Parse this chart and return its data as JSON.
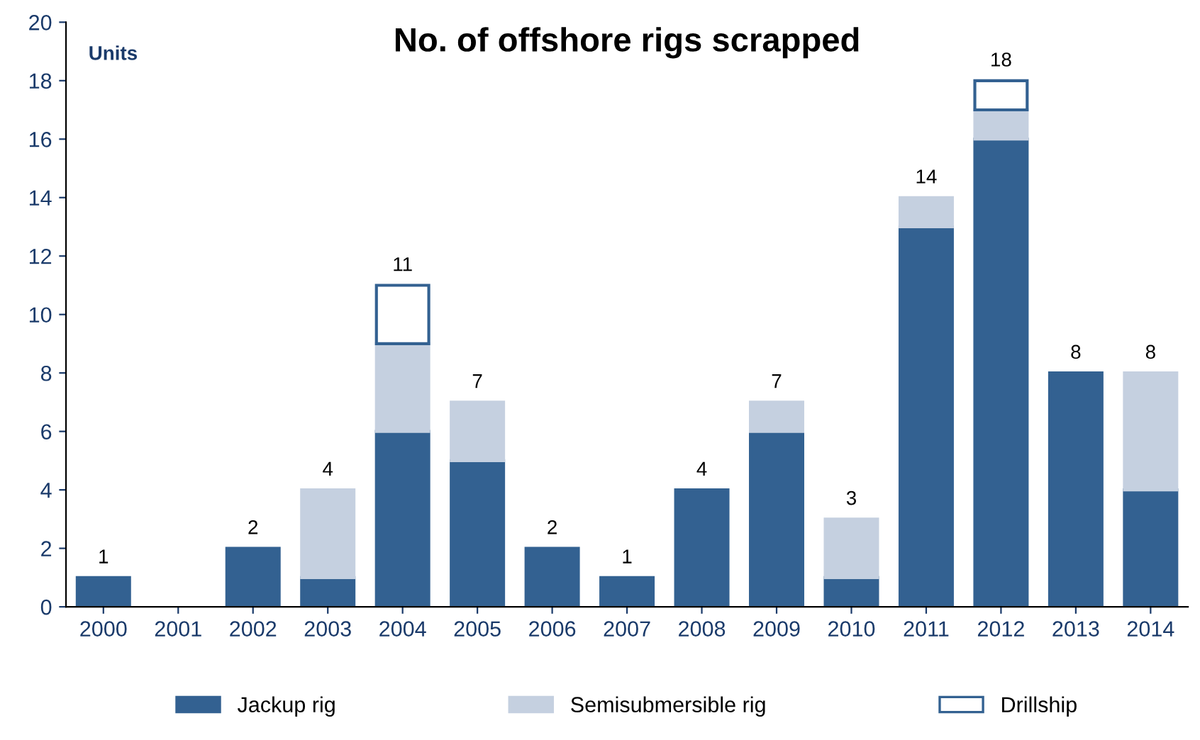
{
  "chart_data": {
    "type": "bar",
    "title": "No. of offshore rigs scrapped",
    "annotations": [
      "Units"
    ],
    "categories": [
      "2000",
      "2001",
      "2002",
      "2003",
      "2004",
      "2005",
      "2006",
      "2007",
      "2008",
      "2009",
      "2010",
      "2011",
      "2012",
      "2013",
      "2014"
    ],
    "stacked": true,
    "series": [
      {
        "name": "Jackup rig",
        "color": "#336191",
        "values": [
          1,
          null,
          2,
          1,
          6,
          5,
          2,
          1,
          4,
          6,
          1,
          13,
          16,
          8,
          4
        ]
      },
      {
        "name": "Semisubmersible rig",
        "color": "#c5d0e0",
        "values": [
          null,
          null,
          null,
          3,
          3,
          2,
          null,
          null,
          null,
          1,
          2,
          1,
          1,
          null,
          4
        ]
      },
      {
        "name": "Drillship",
        "color": "#ffffff",
        "values": [
          null,
          null,
          null,
          null,
          2,
          null,
          null,
          null,
          null,
          null,
          null,
          null,
          1,
          null,
          null
        ]
      }
    ],
    "totals": [
      "1",
      null,
      "2",
      "4",
      "11",
      "7",
      "2",
      "1",
      "4",
      "7",
      "3",
      "14",
      "18",
      "8",
      "8"
    ],
    "ylim": [
      0,
      20
    ],
    "yticks": [
      0,
      2,
      4,
      6,
      8,
      10,
      12,
      14,
      16,
      18,
      20
    ],
    "grid": false,
    "legend": "bottom"
  }
}
